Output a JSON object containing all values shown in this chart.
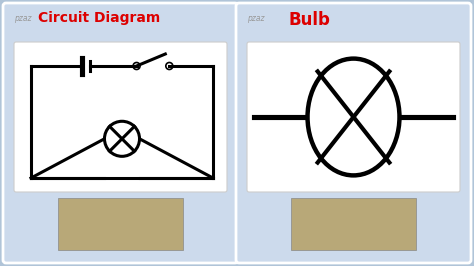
{
  "bg_color": "#b0c4d8",
  "card_bg": "#ccdaec",
  "white_box_bg": "white",
  "title1": "Circuit Diagram",
  "title2": "Bulb",
  "pzaz_color": "#999999",
  "title_color": "#dd0000",
  "line_color": "black",
  "line_width": 2.2,
  "fig_w": 4.74,
  "fig_h": 2.66
}
